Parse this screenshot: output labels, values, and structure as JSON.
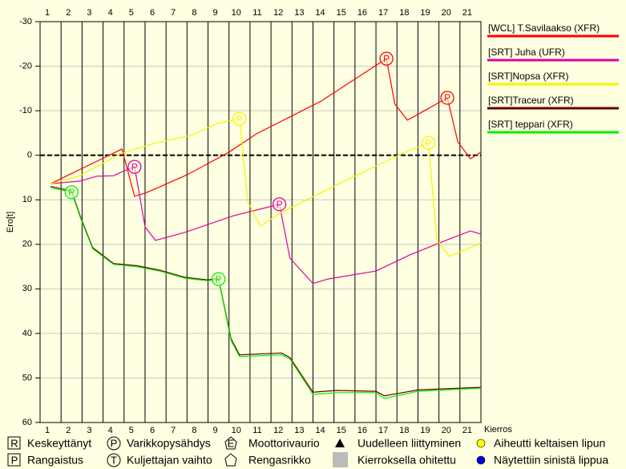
{
  "chart_data": {
    "type": "line",
    "y_axis_label": "Ero[t]",
    "x_axis_label": "Kierros",
    "xlim": [
      0.5,
      21.5
    ],
    "xticks": [
      1,
      2,
      3,
      4,
      5,
      6,
      7,
      8,
      9,
      10,
      11,
      12,
      13,
      14,
      15,
      16,
      17,
      18,
      19,
      20,
      21
    ],
    "ylim": [
      -30,
      60
    ],
    "y_inverted": true,
    "yticks": [
      -30,
      -20,
      -10,
      0,
      10,
      20,
      30,
      40,
      50,
      60
    ],
    "grid": true,
    "zero_line": true,
    "legend": "right",
    "pit_label": "P",
    "series": [
      {
        "name": "[WCL] T.Savilaakso (XFR)",
        "color": "#ff0000",
        "x": [
          1,
          4.4,
          5,
          5.5,
          6.2,
          7.5,
          9.5,
          10.8,
          13.9,
          17,
          17.4,
          18,
          18.4,
          19.9,
          20.4,
          21,
          21.5
        ],
        "values": [
          6.4,
          -1.4,
          9.2,
          8.5,
          7.1,
          4.4,
          -0.7,
          -4.8,
          -12.2,
          -21.7,
          -11.5,
          -7.9,
          -8.9,
          -12.9,
          -3.0,
          0.8,
          -0.7
        ],
        "pits": [
          {
            "x": 17,
            "y": -21.7
          },
          {
            "x": 19.9,
            "y": -12.9
          }
        ]
      },
      {
        "name": "[SRT] Juha (UFR)",
        "color": "#e000a0",
        "x": [
          1,
          2.4,
          3.2,
          4,
          4.5,
          5,
          5.5,
          6,
          7.4,
          9.7,
          10.8,
          11.9,
          12.4,
          13.5,
          14.2,
          16.5,
          18.1,
          20,
          21,
          21.5
        ],
        "values": [
          6.4,
          5.8,
          4.7,
          4.6,
          3.5,
          2.6,
          16.1,
          19.1,
          17.3,
          13.6,
          12.3,
          11.0,
          23.1,
          28.8,
          27.8,
          26.0,
          22.4,
          18.8,
          17.0,
          17.7
        ],
        "pits": [
          {
            "x": 5,
            "y": 2.6
          },
          {
            "x": 11.9,
            "y": 11.0
          }
        ]
      },
      {
        "name": "[SRT]Nopsa (XFR)",
        "color": "#f5f500",
        "x": [
          1,
          2.4,
          4.3,
          5.8,
          7.8,
          8.9,
          10,
          10.4,
          11,
          12,
          15,
          17.7,
          19,
          19.4,
          20,
          21.5
        ],
        "values": [
          6.4,
          4.6,
          -0.3,
          -2.5,
          -4.6,
          -7.1,
          -8.2,
          10.5,
          15.9,
          12.8,
          5.8,
          -0.3,
          -2.8,
          19.1,
          22.7,
          19.7
        ],
        "pits": [
          {
            "x": 10,
            "y": -8.2
          },
          {
            "x": 19,
            "y": -2.8
          }
        ]
      },
      {
        "name": "[SRT]Traceur (XFR)",
        "color": "#600000",
        "x": [
          1,
          2,
          2.4,
          3,
          4,
          5.1,
          6.2,
          7.4,
          8.5,
          9,
          9.6,
          10,
          12,
          12.4,
          13.5,
          14.6,
          16.5,
          16.9,
          18.5,
          21.5
        ],
        "values": [
          7.0,
          8.0,
          13.5,
          20.7,
          24.3,
          24.8,
          25.8,
          27.4,
          28.0,
          27.6,
          41.2,
          44.8,
          44.4,
          45.4,
          53.2,
          52.8,
          53.0,
          54.0,
          52.7,
          52.1
        ],
        "pits": []
      },
      {
        "name": "[SRT] teppari (XFR)",
        "color": "#00ee00",
        "x": [
          1,
          2,
          2.4,
          3,
          4,
          5.1,
          6.2,
          7.4,
          8.5,
          9,
          9.6,
          10,
          12,
          12.4,
          13.5,
          14.6,
          16.5,
          16.9,
          18.5,
          21.5
        ],
        "values": [
          7.3,
          8.3,
          13.8,
          21.0,
          24.5,
          25.0,
          26.0,
          27.6,
          28.2,
          27.8,
          41.6,
          45.2,
          44.8,
          45.7,
          53.7,
          53.3,
          53.3,
          54.6,
          53.0,
          52.3
        ],
        "pits": [
          {
            "x": 2,
            "y": 8.3
          },
          {
            "x": 9,
            "y": 27.8
          }
        ]
      }
    ],
    "key": [
      {
        "symbol": "R",
        "label": "Keskeyttänyt"
      },
      {
        "symbol": "P",
        "label": "Rangaistus"
      },
      {
        "symbol": "P",
        "label": "Varikkopysähdys"
      },
      {
        "symbol": "T",
        "label": "Kuljettajan vaihto"
      },
      {
        "symbol": "E",
        "label": "Moottorivaurio"
      },
      {
        "symbol": "",
        "label": "Rengasrikko"
      },
      {
        "symbol": "",
        "label": "Uudelleen liittyminen"
      },
      {
        "symbol": "",
        "label": "Kierroksella ohitettu"
      },
      {
        "symbol": "",
        "label": "Aiheutti keltaisen lipun"
      },
      {
        "symbol": "",
        "label": "Näytettiin sinistä lippua"
      }
    ]
  }
}
